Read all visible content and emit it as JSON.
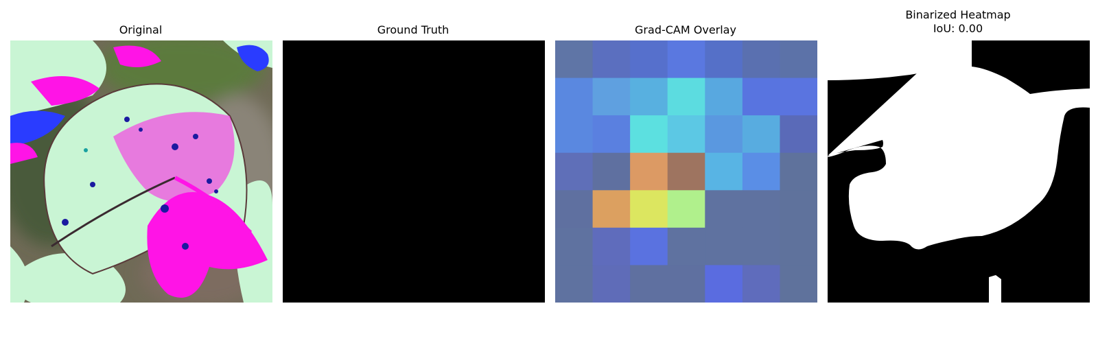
{
  "panels": [
    {
      "title": "Original"
    },
    {
      "title": "Ground Truth"
    },
    {
      "title": "Grad-CAM Overlay"
    },
    {
      "title": "Binarized Heatmap\nIoU: 0.00"
    }
  ],
  "colors": {
    "leaf_pale": "#c9f5d4",
    "magenta": "#ff14e6",
    "blue": "#2a3cff",
    "background_blur": "#7a6a5a",
    "mask_white": "#ffffff",
    "mask_black": "#000000"
  },
  "gradcam_grid": [
    [
      "#5f75a6",
      "#5b6fbf",
      "#5670cc",
      "#5a78e0",
      "#5570c8",
      "#5a70b0",
      "#5c72a8"
    ],
    [
      "#5a88e0",
      "#5fa0e0",
      "#58b0e0",
      "#5cdce0",
      "#58a8e0",
      "#5874e0",
      "#5a74e0"
    ],
    [
      "#5a88e0",
      "#5a80e0",
      "#5ce0e0",
      "#5cc8e4",
      "#5a98e0",
      "#58ace0",
      "#5a6ab8"
    ],
    [
      "#5f6fb8",
      "#5f70a0",
      "#dc9a64",
      "#9e7460",
      "#58b4e4",
      "#5a8ee6",
      "#5f729c"
    ],
    [
      "#5f70a0",
      "#dca060",
      "#dce660",
      "#b0f08c",
      "#5f72a0",
      "#5f72a0",
      "#5f729c"
    ],
    [
      "#5f72a0",
      "#5f6cbc",
      "#5a72e0",
      "#5f72a0",
      "#5f72a0",
      "#5f72a0",
      "#5f729c"
    ],
    [
      "#5f72a0",
      "#5f6cb8",
      "#5f70a0",
      "#5f70a0",
      "#5a6ce0",
      "#5f6cbc",
      "#5f729c"
    ]
  ]
}
